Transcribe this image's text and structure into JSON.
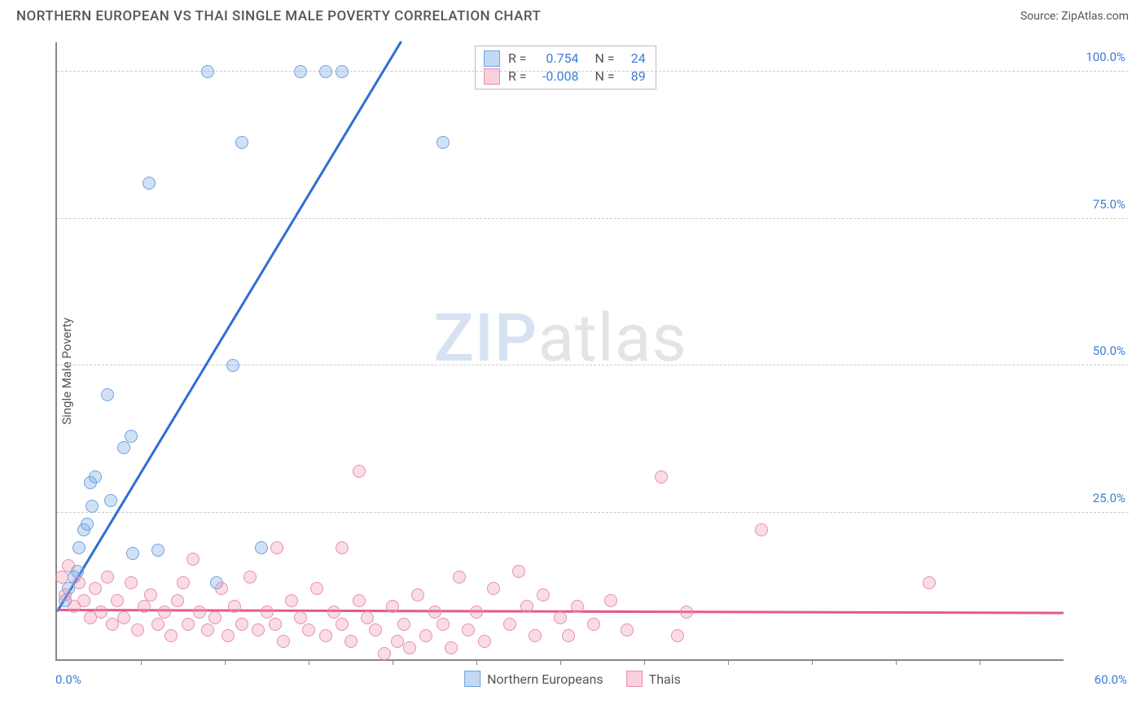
{
  "header": {
    "title": "NORTHERN EUROPEAN VS THAI SINGLE MALE POVERTY CORRELATION CHART",
    "source": "Source: ZipAtlas.com"
  },
  "chart": {
    "type": "scatter",
    "ylabel": "Single Male Poverty",
    "xlim": [
      0,
      60
    ],
    "ylim": [
      0,
      105
    ],
    "x_axis_label_min": "0.0%",
    "x_axis_label_max": "60.0%",
    "y_ticks": [
      25,
      50,
      75,
      100
    ],
    "y_tick_labels": [
      "25.0%",
      "50.0%",
      "75.0%",
      "100.0%"
    ],
    "x_minor_ticks": [
      5,
      10,
      15,
      20,
      25,
      30,
      35,
      40,
      45,
      50,
      55
    ],
    "grid_color": "#cccccc",
    "axis_color": "#888888",
    "tick_label_color": "#3b7dd8",
    "background_color": "#ffffff",
    "series": [
      {
        "name": "Northern Europeans",
        "fill": "rgba(120,170,230,0.35)",
        "stroke": "#6fa3dd",
        "trend_color": "#2e6fd0",
        "trend": {
          "x1": 0,
          "y1": 8,
          "x2": 20.5,
          "y2": 105
        },
        "R": "0.754",
        "N": "24",
        "points": [
          [
            0.5,
            10
          ],
          [
            0.7,
            12
          ],
          [
            1.0,
            14
          ],
          [
            1.2,
            15
          ],
          [
            1.3,
            19
          ],
          [
            1.6,
            22
          ],
          [
            1.8,
            23
          ],
          [
            2.1,
            26
          ],
          [
            2.0,
            30
          ],
          [
            2.3,
            31
          ],
          [
            3.2,
            27
          ],
          [
            4.0,
            36
          ],
          [
            4.4,
            38
          ],
          [
            3.0,
            45
          ],
          [
            4.5,
            18
          ],
          [
            6.0,
            18.5
          ],
          [
            9.5,
            13
          ],
          [
            12.2,
            19
          ],
          [
            5.5,
            81
          ],
          [
            9.0,
            100
          ],
          [
            11.0,
            88
          ],
          [
            14.5,
            100
          ],
          [
            16.0,
            100
          ],
          [
            17.0,
            100
          ],
          [
            23.0,
            88
          ],
          [
            10.5,
            50
          ]
        ]
      },
      {
        "name": "Thais",
        "fill": "rgba(240,140,170,0.30)",
        "stroke": "#e88fb0",
        "trend_color": "#e45a8a",
        "trend": {
          "x1": 0,
          "y1": 8.3,
          "x2": 60,
          "y2": 7.8
        },
        "R": "-0.008",
        "N": "89",
        "points": [
          [
            0.3,
            14
          ],
          [
            0.5,
            11
          ],
          [
            0.7,
            16
          ],
          [
            1.0,
            9
          ],
          [
            1.3,
            13
          ],
          [
            1.6,
            10
          ],
          [
            2.0,
            7
          ],
          [
            2.3,
            12
          ],
          [
            2.6,
            8
          ],
          [
            3.0,
            14
          ],
          [
            3.3,
            6
          ],
          [
            3.6,
            10
          ],
          [
            4.0,
            7
          ],
          [
            4.4,
            13
          ],
          [
            4.8,
            5
          ],
          [
            5.2,
            9
          ],
          [
            5.6,
            11
          ],
          [
            6.0,
            6
          ],
          [
            6.4,
            8
          ],
          [
            6.8,
            4
          ],
          [
            7.2,
            10
          ],
          [
            7.5,
            13
          ],
          [
            7.8,
            6
          ],
          [
            8.1,
            17
          ],
          [
            8.5,
            8
          ],
          [
            9.0,
            5
          ],
          [
            9.4,
            7
          ],
          [
            9.8,
            12
          ],
          [
            10.2,
            4
          ],
          [
            10.6,
            9
          ],
          [
            11.0,
            6
          ],
          [
            11.5,
            14
          ],
          [
            12.0,
            5
          ],
          [
            12.5,
            8
          ],
          [
            13.1,
            19
          ],
          [
            13.0,
            6
          ],
          [
            13.5,
            3
          ],
          [
            14.0,
            10
          ],
          [
            14.5,
            7
          ],
          [
            15.0,
            5
          ],
          [
            15.5,
            12
          ],
          [
            16.0,
            4
          ],
          [
            16.5,
            8
          ],
          [
            17.0,
            19
          ],
          [
            17.0,
            6
          ],
          [
            17.5,
            3
          ],
          [
            18.0,
            10
          ],
          [
            18.5,
            7
          ],
          [
            19.0,
            5
          ],
          [
            19.5,
            1
          ],
          [
            20.0,
            9
          ],
          [
            20.3,
            3
          ],
          [
            20.7,
            6
          ],
          [
            21.0,
            2
          ],
          [
            21.5,
            11
          ],
          [
            22.0,
            4
          ],
          [
            22.5,
            8
          ],
          [
            23.0,
            6
          ],
          [
            23.5,
            2
          ],
          [
            24.0,
            14
          ],
          [
            24.5,
            5
          ],
          [
            25.0,
            8
          ],
          [
            25.5,
            3
          ],
          [
            26.0,
            12
          ],
          [
            27.0,
            6
          ],
          [
            27.5,
            15
          ],
          [
            28.0,
            9
          ],
          [
            28.5,
            4
          ],
          [
            29.0,
            11
          ],
          [
            30.0,
            7
          ],
          [
            30.5,
            4
          ],
          [
            31.0,
            9
          ],
          [
            32.0,
            6
          ],
          [
            33.0,
            10
          ],
          [
            34.0,
            5
          ],
          [
            36.0,
            31
          ],
          [
            37.5,
            8
          ],
          [
            37.0,
            4
          ],
          [
            42.0,
            22
          ],
          [
            52.0,
            13
          ],
          [
            18.0,
            32
          ]
        ]
      }
    ],
    "legend_box": {
      "left_pct": 41.5,
      "top_pct": 0.5,
      "rows": [
        {
          "swatch_fill": "rgba(120,170,230,0.45)",
          "swatch_stroke": "#6fa3dd",
          "r_label": "R =",
          "r_val": "0.754",
          "n_label": "N =",
          "n_val": "24"
        },
        {
          "swatch_fill": "rgba(240,140,170,0.40)",
          "swatch_stroke": "#e88fb0",
          "r_label": "R =",
          "r_val": "-0.008",
          "n_label": "N =",
          "n_val": "89"
        }
      ]
    },
    "bottom_legend": [
      {
        "swatch_fill": "rgba(120,170,230,0.45)",
        "swatch_stroke": "#6fa3dd",
        "label": "Northern Europeans"
      },
      {
        "swatch_fill": "rgba(240,140,170,0.40)",
        "swatch_stroke": "#e88fb0",
        "label": "Thais"
      }
    ],
    "watermark": {
      "part1": "ZIP",
      "part2": "atlas"
    }
  }
}
